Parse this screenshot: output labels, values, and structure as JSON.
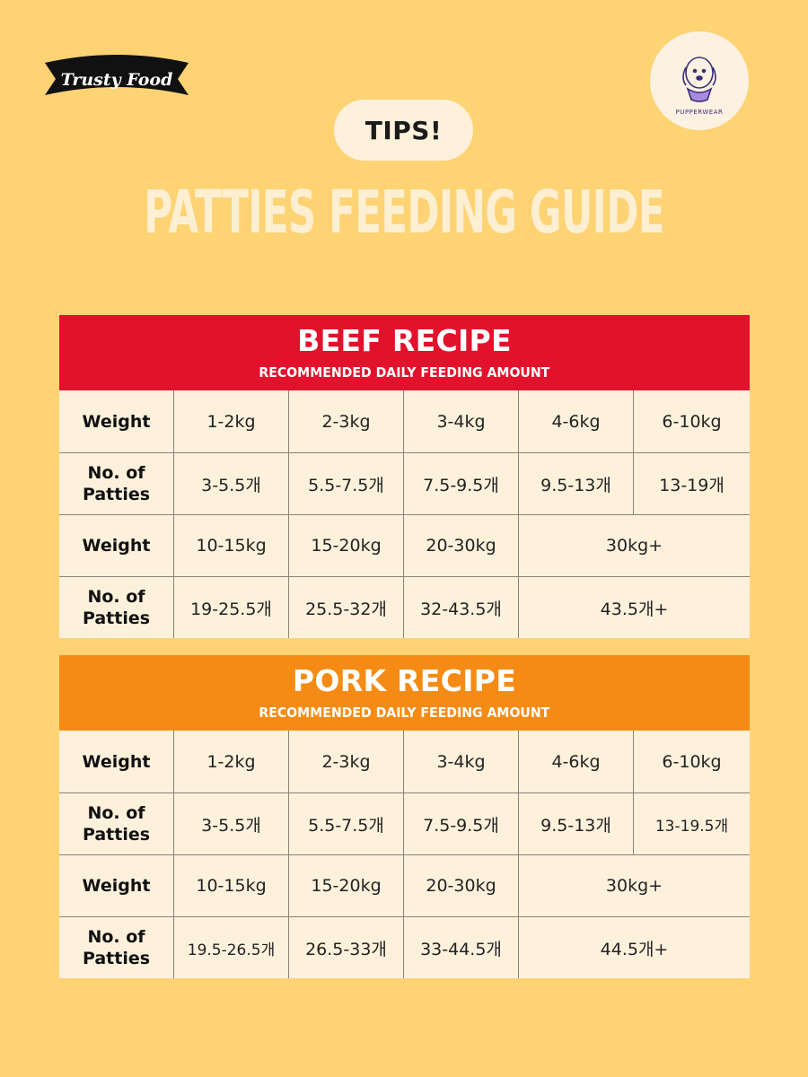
{
  "brand_left": "Trusty Food",
  "brand_right": "PUPPERWEAR",
  "tips_badge": "TIPS!",
  "title": "PATTIES FEEDING GUIDE",
  "colors": {
    "background": "#fdd374",
    "beef_header": "#e2122d",
    "pork_header": "#f58b15",
    "table_bg": "#fdf1dc",
    "title_text": "#fdefd2"
  },
  "beef": {
    "title": "BEEF RECIPE",
    "subtitle": "RECOMMENDED DAILY FEEDING AMOUNT",
    "weight_label": "Weight",
    "patties_label": "No. of Patties",
    "row1_weights": [
      "1-2kg",
      "2-3kg",
      "3-4kg",
      "4-6kg",
      "6-10kg"
    ],
    "row1_patties": [
      "3-5.5개",
      "5.5-7.5개",
      "7.5-9.5개",
      "9.5-13개",
      "13-19개"
    ],
    "row2_weights": [
      "10-15kg",
      "15-20kg",
      "20-30kg",
      "30kg+"
    ],
    "row2_patties": [
      "19-25.5개",
      "25.5-32개",
      "32-43.5개",
      "43.5개+"
    ]
  },
  "pork": {
    "title": "PORK RECIPE",
    "subtitle": "RECOMMENDED DAILY FEEDING AMOUNT",
    "weight_label": "Weight",
    "patties_label": "No. of Patties",
    "row1_weights": [
      "1-2kg",
      "2-3kg",
      "3-4kg",
      "4-6kg",
      "6-10kg"
    ],
    "row1_patties": [
      "3-5.5개",
      "5.5-7.5개",
      "7.5-9.5개",
      "9.5-13개",
      "13-19.5개"
    ],
    "row2_weights": [
      "10-15kg",
      "15-20kg",
      "20-30kg",
      "30kg+"
    ],
    "row2_patties": [
      "19.5-26.5개",
      "26.5-33개",
      "33-44.5개",
      "44.5개+"
    ]
  }
}
